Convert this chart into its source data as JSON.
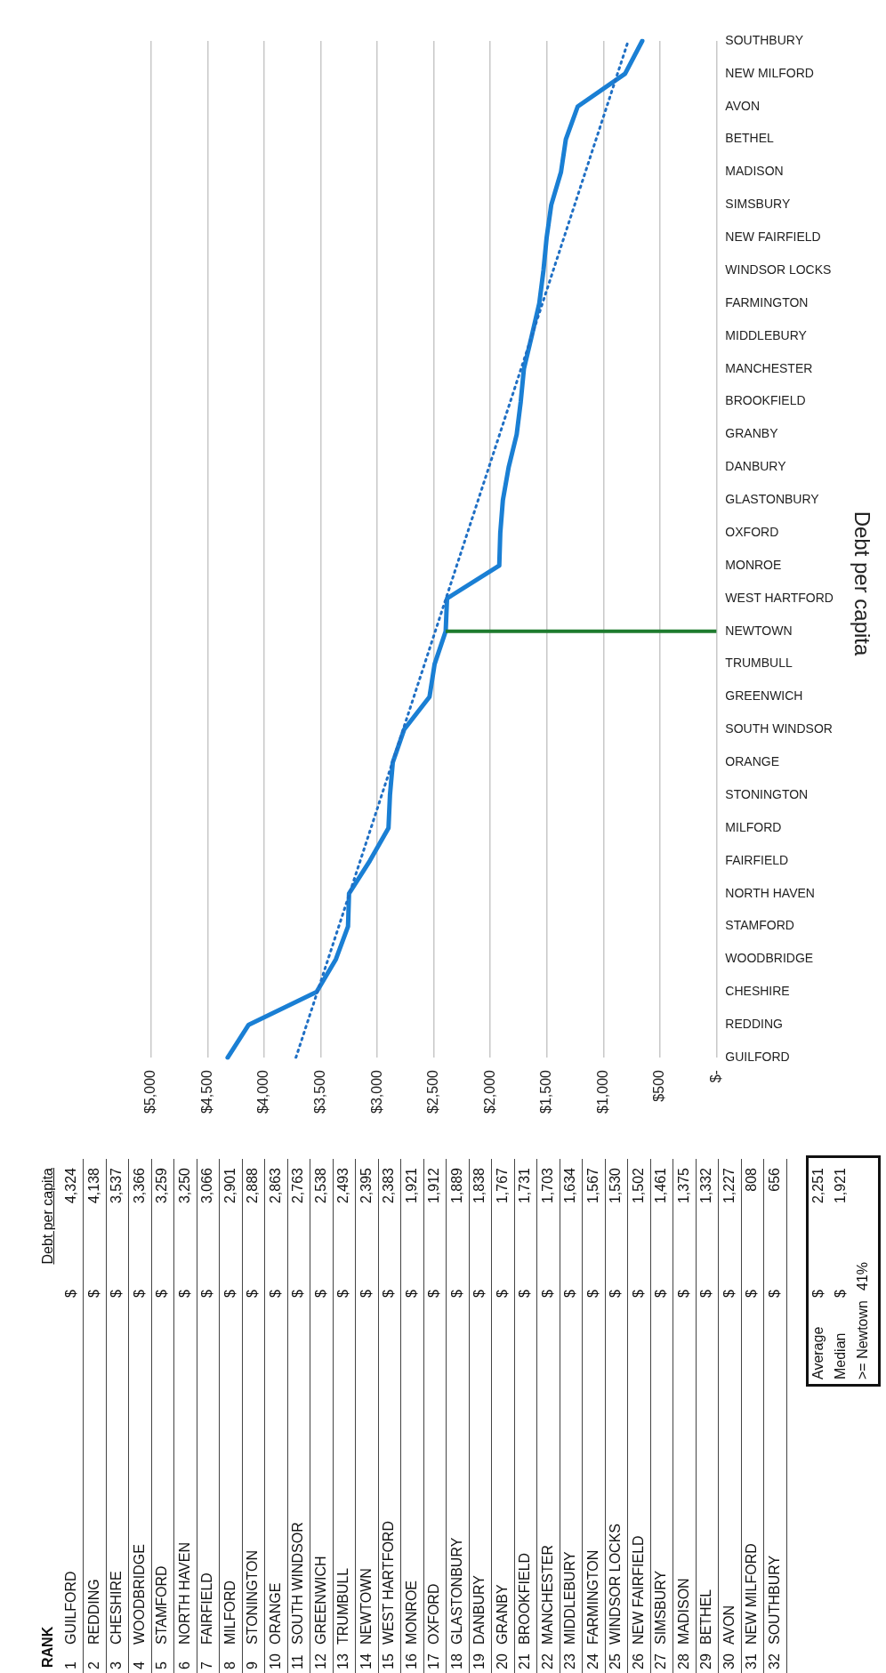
{
  "chart_data": {
    "type": "line",
    "title": "Debt per capita",
    "orientation": "horizontal",
    "categories": [
      "SOUTHBURY",
      "NEW MILFORD",
      "AVON",
      "BETHEL",
      "MADISON",
      "SIMSBURY",
      "NEW FAIRFIELD",
      "WINDSOR LOCKS",
      "FARMINGTON",
      "MIDDLEBURY",
      "MANCHESTER",
      "BROOKFIELD",
      "GRANBY",
      "DANBURY",
      "GLASTONBURY",
      "OXFORD",
      "MONROE",
      "WEST HARTFORD",
      "NEWTOWN",
      "TRUMBULL",
      "GREENWICH",
      "SOUTH WINDSOR",
      "ORANGE",
      "STONINGTON",
      "MILFORD",
      "FAIRFIELD",
      "NORTH HAVEN",
      "STAMFORD",
      "WOODBRIDGE",
      "CHESHIRE",
      "REDDING",
      "GUILFORD"
    ],
    "series": [
      {
        "type": "line",
        "color": "#1a7fd4",
        "line_style": "solid",
        "values": [
          656,
          808,
          1227,
          1332,
          1375,
          1461,
          1502,
          1530,
          1567,
          1634,
          1703,
          1731,
          1767,
          1838,
          1889,
          1912,
          1921,
          2383,
          2395,
          2493,
          2538,
          2763,
          2863,
          2888,
          2901,
          3066,
          3250,
          3259,
          3366,
          3537,
          4138,
          4324
        ]
      },
      {
        "type": "line",
        "color": "#1f6fc4",
        "line_style": "dotted",
        "x": [
          "GUILFORD",
          "SOUTHBURY"
        ],
        "values": [
          3720,
          780
        ]
      }
    ],
    "value_labels": [
      "656",
      "808",
      "1,227",
      "1,332",
      "1,375",
      "1,461",
      "1,502",
      "1,530",
      "1,567",
      "1,634",
      "1,703",
      "1,731",
      "1,767",
      "1,838",
      "1,889",
      "1,912",
      "1,921",
      "2,383",
      "2,395",
      "2,493",
      "2,538",
      "2,763",
      "2,863",
      "2,888",
      "2,901",
      "3,066",
      "3,250",
      "3,259",
      "3,366",
      "3,537",
      "4,138",
      "4,324"
    ],
    "xlim": [
      5000,
      0
    ],
    "xticks": [
      {
        "value": 5000,
        "label": "$5,000"
      },
      {
        "value": 4500,
        "label": "$4,500"
      },
      {
        "value": 4000,
        "label": "$4,000"
      },
      {
        "value": 3500,
        "label": "$3,500"
      },
      {
        "value": 3000,
        "label": "$3,000"
      },
      {
        "value": 2500,
        "label": "$2,500"
      },
      {
        "value": 2000,
        "label": "$2,000"
      },
      {
        "value": 1500,
        "label": "$1,500"
      },
      {
        "value": 1000,
        "label": "$1,000"
      },
      {
        "value": 500,
        "label": "$500"
      },
      {
        "value": 0,
        "label": "$-"
      }
    ],
    "grid": "x",
    "marker": "none",
    "legend": false,
    "ref_lines": [
      {
        "axis": "y",
        "value": "NEWTOWN",
        "color": "#1e7b2e"
      }
    ],
    "annotations": [
      "RANK",
      "Debt per capita",
      "$",
      "Average",
      "2,251",
      "Median",
      "1,921",
      ">= Newtown",
      "41%",
      "1",
      "2",
      "3",
      "4",
      "5",
      "6",
      "7",
      "8",
      "9",
      "10",
      "11",
      "12",
      "13",
      "14",
      "15",
      "16",
      "17",
      "18",
      "19",
      "20",
      "21",
      "22",
      "23",
      "24",
      "25",
      "26",
      "27",
      "28",
      "29",
      "30",
      "31",
      "32"
    ]
  }
}
